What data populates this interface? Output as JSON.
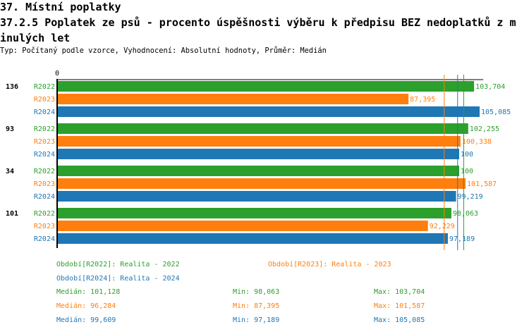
{
  "header": {
    "title": "37. Místní poplatky",
    "subtitle": "37.2.5 Poplatek ze psů - procento úspěšnosti výběru k předpisu BEZ nedoplatků z minulých let",
    "info": "Typ: Počítaný podle vzorce, Vyhodnocení: Absolutní hodnoty, Průměr: Medián"
  },
  "chart_data": {
    "type": "bar",
    "orientation": "horizontal",
    "x_tick_labels": [
      "0"
    ],
    "xlim": [
      0,
      106
    ],
    "categories": [
      "136",
      "93",
      "34",
      "101"
    ],
    "series": [
      {
        "name": "R2022",
        "color": "#2ca02c",
        "values": [
          103.704,
          102.255,
          100,
          98.063
        ],
        "labels": [
          "103,704",
          "102,255",
          "100",
          "98,063"
        ]
      },
      {
        "name": "R2023",
        "color": "#ff7f0e",
        "values": [
          87.395,
          100.338,
          101.587,
          92.229
        ],
        "labels": [
          "87,395",
          "100,338",
          "101,587",
          "92,229"
        ]
      },
      {
        "name": "R2024",
        "color": "#1f77b4",
        "values": [
          105.085,
          100,
          99.219,
          97.189
        ],
        "labels": [
          "105,085",
          "100",
          "99,219",
          "97,189"
        ]
      }
    ],
    "median_lines": [
      {
        "series": "R2022",
        "value": 101.128,
        "color": "#2ca02c"
      },
      {
        "series": "R2023",
        "value": 96.284,
        "color": "#ff7f0e"
      },
      {
        "series": "R2024",
        "value": 99.609,
        "color": "#1f77b4"
      }
    ],
    "legend": [
      {
        "text": "Období[R2022]: Realita - 2022",
        "color": "#2ca02c"
      },
      {
        "text": "Období[R2023]: Realita - 2023",
        "color": "#ff7f0e"
      },
      {
        "text": "Období[R2024]: Realita - 2024",
        "color": "#1f77b4"
      }
    ],
    "stats": [
      {
        "median": "Medián: 101,128",
        "min": "Min: 98,063",
        "max": "Max: 103,704",
        "color": "#2ca02c"
      },
      {
        "median": "Medián: 96,284",
        "min": "Min: 87,395",
        "max": "Max: 101,587",
        "color": "#ff7f0e"
      },
      {
        "median": "Medián: 99,609",
        "min": "Min: 97,189",
        "max": "Max: 105,085",
        "color": "#1f77b4"
      }
    ]
  }
}
